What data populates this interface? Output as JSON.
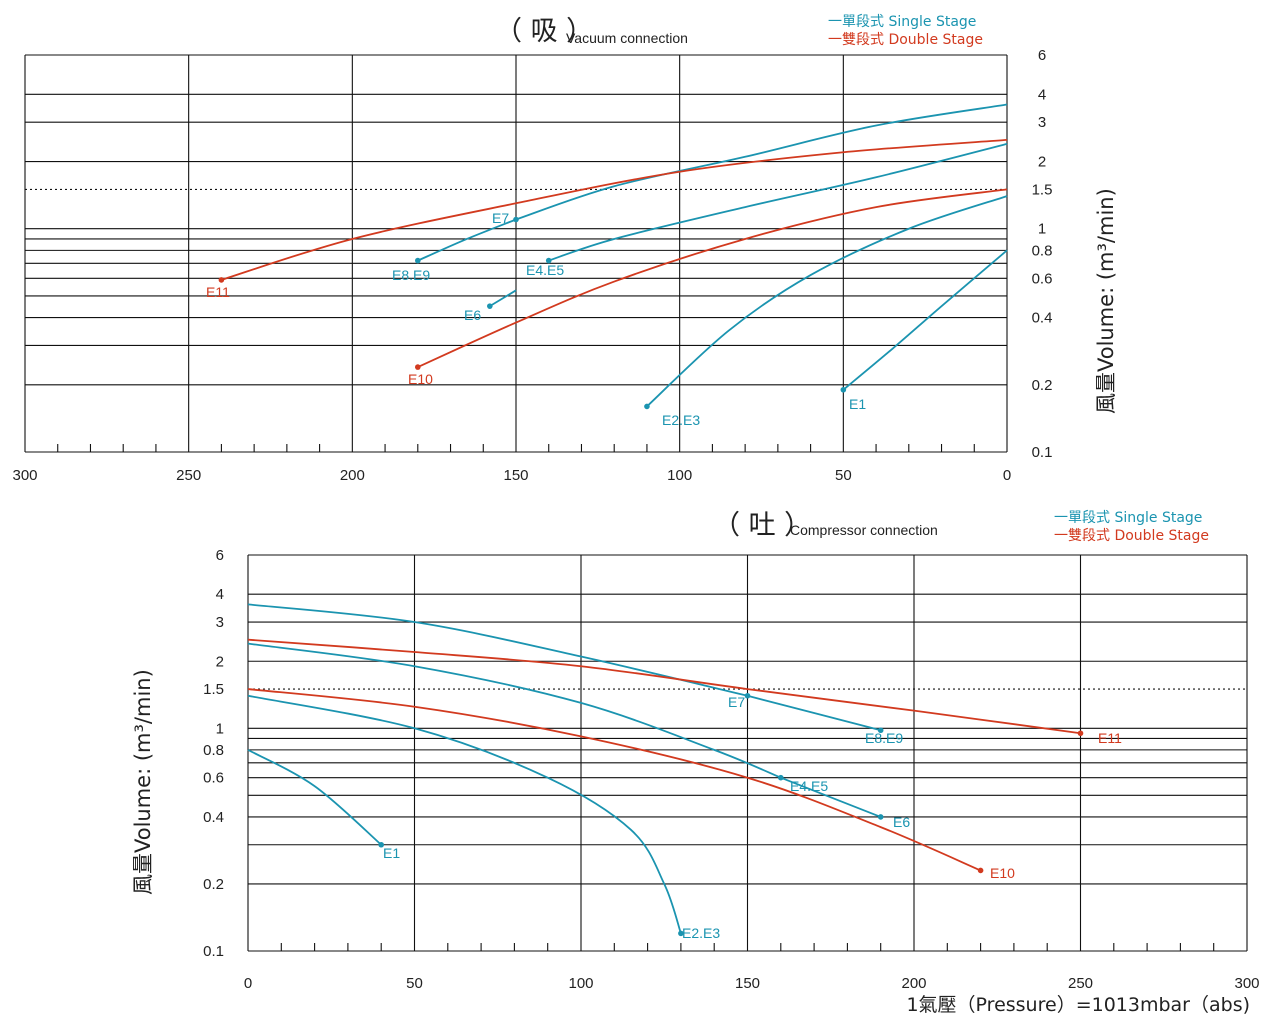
{
  "colors": {
    "single": "#1b94b0",
    "double": "#d23a1f",
    "grid": "#111111"
  },
  "legend": {
    "single": "一單段式 Single Stage",
    "double": "一雙段式 Double Stage"
  },
  "ylabel": "風量Volume: (m³/min)",
  "footer": "1氣壓（Pressure）=1013mbar（abs)",
  "chart_data": [
    {
      "type": "line",
      "title_main": "（ 吸 ）",
      "title_sub": "Vacuum connection",
      "x_reversed": true,
      "xlim": [
        300,
        0
      ],
      "y_scale": "log",
      "ylim": [
        0.1,
        6
      ],
      "x_ticks": [
        "300",
        "250",
        "200",
        "150",
        "100",
        "50",
        "0"
      ],
      "y_ticks": [
        "6",
        "4",
        "3",
        "2",
        "1.5",
        "1",
        "0.8",
        "0.6",
        "0.4",
        "0.2",
        "0.1"
      ],
      "reference_line": 1.5,
      "series": [
        {
          "label": "E1",
          "stage": "single",
          "points": [
            [
              0,
              0.8
            ],
            [
              20,
              0.45
            ],
            [
              35,
              0.29
            ],
            [
              50,
              0.19
            ]
          ]
        },
        {
          "label": "E2.E3",
          "stage": "single",
          "points": [
            [
              0,
              1.4
            ],
            [
              30,
              1.0
            ],
            [
              60,
              0.62
            ],
            [
              85,
              0.35
            ],
            [
              110,
              0.16
            ]
          ]
        },
        {
          "label": "E4.E5",
          "stage": "single",
          "points": [
            [
              0,
              2.4
            ],
            [
              40,
              1.7
            ],
            [
              80,
              1.25
            ],
            [
              120,
              0.9
            ],
            [
              140,
              0.72
            ]
          ]
        },
        {
          "label": "E6",
          "stage": "single",
          "points": [
            [
              150,
              0.53
            ],
            [
              158,
              0.45
            ]
          ]
        },
        {
          "label": "E7",
          "stage": "single",
          "points": [
            [
              0,
              3.6
            ],
            [
              40,
              2.9
            ],
            [
              80,
              2.1
            ],
            [
              120,
              1.55
            ],
            [
              150,
              1.1
            ]
          ]
        },
        {
          "label": "E8.E9",
          "stage": "single",
          "points": [
            [
              150,
              1.1
            ],
            [
              165,
              0.9
            ],
            [
              180,
              0.72
            ]
          ]
        },
        {
          "label": "E10",
          "stage": "double",
          "points": [
            [
              0,
              1.5
            ],
            [
              40,
              1.25
            ],
            [
              80,
              0.9
            ],
            [
              120,
              0.58
            ],
            [
              150,
              0.38
            ],
            [
              180,
              0.24
            ]
          ]
        },
        {
          "label": "E11",
          "stage": "double",
          "points": [
            [
              0,
              2.5
            ],
            [
              50,
              2.2
            ],
            [
              100,
              1.8
            ],
            [
              150,
              1.3
            ],
            [
              200,
              0.9
            ],
            [
              240,
              0.59
            ]
          ]
        }
      ],
      "label_text": [
        "E1",
        "E2.E3",
        "E4.E5",
        "E6",
        "E7",
        "E8.E9",
        "E10",
        "E11"
      ]
    },
    {
      "type": "line",
      "title_main": "（ 吐 ）",
      "title_sub": "Compressor connection",
      "x_reversed": false,
      "xlim": [
        0,
        300
      ],
      "y_scale": "log",
      "ylim": [
        0.1,
        6
      ],
      "x_ticks": [
        "0",
        "50",
        "100",
        "150",
        "200",
        "250",
        "300"
      ],
      "y_ticks": [
        "6",
        "4",
        "3",
        "2",
        "1.5",
        "1",
        "0.8",
        "0.6",
        "0.4",
        "0.2",
        "0.1"
      ],
      "reference_line": 1.5,
      "series": [
        {
          "label": "E1",
          "stage": "single",
          "points": [
            [
              0,
              0.8
            ],
            [
              20,
              0.55
            ],
            [
              40,
              0.3
            ]
          ]
        },
        {
          "label": "E2.E3",
          "stage": "single",
          "points": [
            [
              0,
              1.4
            ],
            [
              50,
              1.0
            ],
            [
              90,
              0.6
            ],
            [
              115,
              0.35
            ],
            [
              125,
              0.2
            ],
            [
              130,
              0.12
            ]
          ]
        },
        {
          "label": "E4.E5",
          "stage": "single",
          "points": [
            [
              0,
              2.4
            ],
            [
              50,
              1.9
            ],
            [
              100,
              1.3
            ],
            [
              140,
              0.8
            ],
            [
              160,
              0.6
            ]
          ]
        },
        {
          "label": "E6",
          "stage": "single",
          "points": [
            [
              160,
              0.6
            ],
            [
              190,
              0.4
            ]
          ]
        },
        {
          "label": "E7",
          "stage": "single",
          "points": [
            [
              0,
              3.6
            ],
            [
              50,
              3.0
            ],
            [
              100,
              2.1
            ],
            [
              150,
              1.4
            ]
          ]
        },
        {
          "label": "E8.E9",
          "stage": "single",
          "points": [
            [
              150,
              1.4
            ],
            [
              190,
              0.98
            ]
          ]
        },
        {
          "label": "E10",
          "stage": "double",
          "points": [
            [
              0,
              1.5
            ],
            [
              50,
              1.25
            ],
            [
              100,
              0.92
            ],
            [
              150,
              0.6
            ],
            [
              190,
              0.36
            ],
            [
              220,
              0.23
            ]
          ]
        },
        {
          "label": "E11",
          "stage": "double",
          "points": [
            [
              0,
              2.5
            ],
            [
              50,
              2.2
            ],
            [
              100,
              1.9
            ],
            [
              150,
              1.5
            ],
            [
              200,
              1.2
            ],
            [
              250,
              0.95
            ]
          ]
        }
      ],
      "label_text": [
        "E1",
        "E2.E3",
        "E4.E5",
        "E6",
        "E7",
        "E8.E9",
        "E10",
        "E11"
      ]
    }
  ]
}
